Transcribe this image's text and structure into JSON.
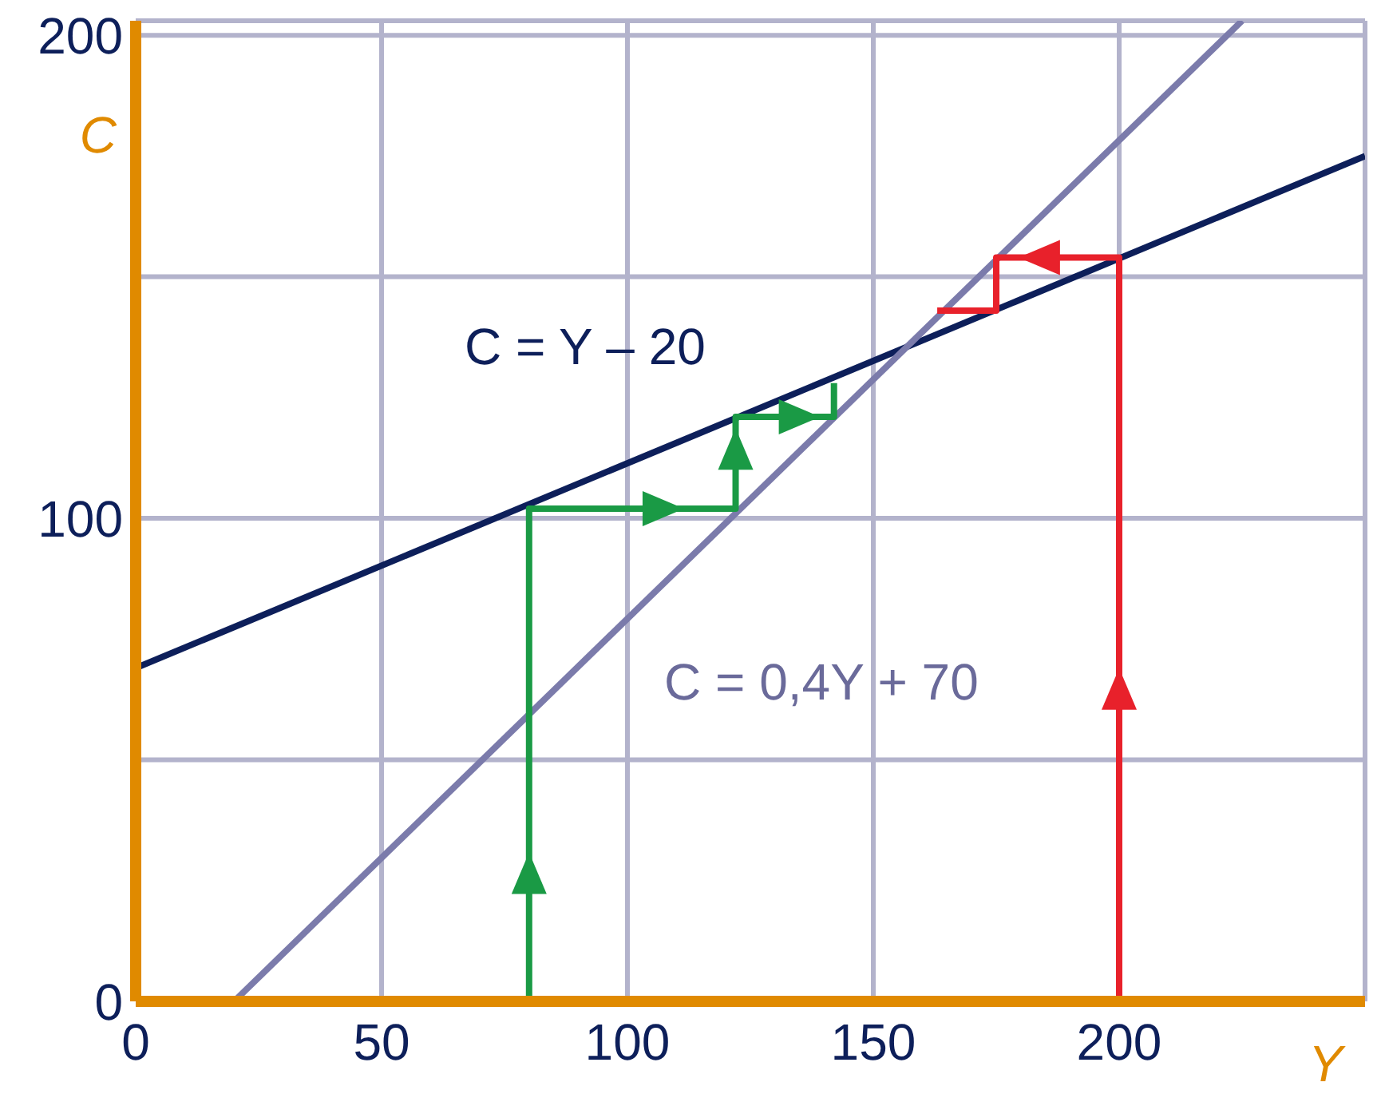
{
  "chart_data": {
    "type": "line",
    "xlabel": "Y",
    "ylabel": "C",
    "xlim": [
      0,
      250
    ],
    "xticks": [
      0,
      50,
      100,
      150,
      200
    ],
    "ylim": [
      0,
      203
    ],
    "yticks": [
      0,
      {
        "value": 50,
        "label": null
      },
      100,
      {
        "value": 150,
        "label": null
      },
      200
    ],
    "grid": true,
    "marker": "none",
    "line_style": "solid",
    "series": [
      {
        "color": "#0d1f5a",
        "x": [
          0,
          250
        ],
        "values": [
          69,
          175
        ]
      },
      {
        "color": "#7b7bab",
        "x": [
          20,
          225
        ],
        "values": [
          0,
          203
        ]
      },
      {
        "color": "#1a9a45",
        "x": [
          80,
          80,
          122,
          122,
          142,
          142
        ],
        "values": [
          0,
          102,
          102,
          121,
          121,
          128
        ]
      },
      {
        "color": "#e8212b",
        "x": [
          200,
          200,
          175,
          175,
          163
        ],
        "values": [
          0,
          154,
          154,
          143,
          143
        ]
      }
    ],
    "annotations": [
      "C = Y – 20",
      "C = 0,4Y + 70"
    ]
  }
}
